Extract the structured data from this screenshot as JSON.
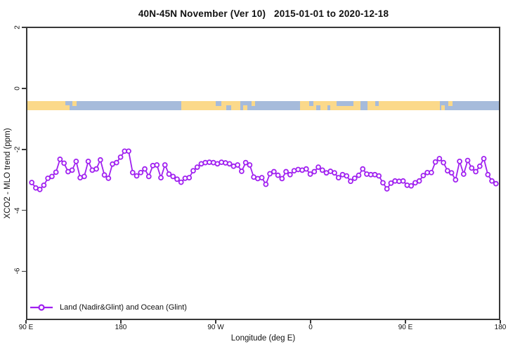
{
  "title": "40N-45N November (Ver 10)   2015-01-01 to 2020-12-18",
  "axes": {
    "x_label": "Longitude (deg E)",
    "y_label": "XCO2 - MLO trend (ppm)",
    "x_tick_labels": [
      "90 E",
      "180",
      "90 W",
      "0",
      "90 E",
      "180"
    ],
    "y_tick_labels": [
      "2",
      "0",
      "-2",
      "-4",
      "-6"
    ],
    "y_tick_values": [
      2,
      0,
      -2,
      -4,
      -6
    ]
  },
  "legend": {
    "label": "Land (Nadir&Glint) and Ocean (Glint)"
  },
  "colors": {
    "series": "#A020F0",
    "land": "#FBD98A",
    "ocean": "#A6BBDB",
    "axis": "#383838"
  },
  "map_band": {
    "description": "World coastline strip for the 40N-45N latitude band drawn near y=-0.5 ppm",
    "land_segments": [
      {
        "l": 0.0,
        "w": 8.0,
        "pos": "full"
      },
      {
        "l": 8.1,
        "w": 0.9,
        "pos": "bottom"
      },
      {
        "l": 9.6,
        "w": 0.8,
        "pos": "top"
      },
      {
        "l": 32.6,
        "w": 12.6,
        "pos": "full"
      },
      {
        "l": 45.8,
        "w": 0.8,
        "pos": "bottom"
      },
      {
        "l": 47.5,
        "w": 0.8,
        "pos": "top"
      },
      {
        "l": 57.8,
        "w": 29.7,
        "pos": "full"
      },
      {
        "l": 87.8,
        "w": 0.8,
        "pos": "bottom"
      },
      {
        "l": 89.3,
        "w": 0.8,
        "pos": "top"
      }
    ],
    "ocean_patches": [
      {
        "l": 40.0,
        "w": 1.2,
        "pos": "top"
      },
      {
        "l": 42.2,
        "w": 1.0,
        "pos": "bottom"
      },
      {
        "l": 59.8,
        "w": 0.8,
        "pos": "top"
      },
      {
        "l": 61.2,
        "w": 1.0,
        "pos": "bottom"
      },
      {
        "l": 63.6,
        "w": 0.7,
        "pos": "bottom"
      },
      {
        "l": 65.6,
        "w": 3.6,
        "pos": "top"
      },
      {
        "l": 70.6,
        "w": 1.6,
        "pos": "full"
      },
      {
        "l": 73.8,
        "w": 0.7,
        "pos": "top"
      }
    ]
  },
  "chart_data": {
    "type": "line",
    "title": "40N-45N November (Ver 10)   2015-01-01 to 2020-12-18",
    "xlabel": "Longitude (deg E)",
    "ylabel": "XCO2 - MLO trend (ppm)",
    "x_tick_labels": [
      "90 E",
      "180",
      "90 W",
      "0",
      "90 E",
      "180"
    ],
    "x_axis_note": "longitude wraps eastward from 90E around the globe to 180",
    "x_span_deg": 450,
    "x_start_deg_east": 93,
    "x_end_deg_east": 538,
    "ylim": [
      -7.6,
      2
    ],
    "grid": false,
    "legend_position": "bottom-left inside plot",
    "marker": "open-circle",
    "series": [
      {
        "name": "Land (Nadir&Glint) and Ocean (Glint)",
        "color": "#A020F0",
        "values": [
          -3.09,
          -3.27,
          -3.32,
          -3.18,
          -2.95,
          -2.89,
          -2.75,
          -2.32,
          -2.45,
          -2.73,
          -2.68,
          -2.39,
          -2.93,
          -2.89,
          -2.39,
          -2.68,
          -2.64,
          -2.34,
          -2.84,
          -2.95,
          -2.48,
          -2.43,
          -2.25,
          -2.05,
          -2.05,
          -2.76,
          -2.87,
          -2.76,
          -2.64,
          -2.89,
          -2.53,
          -2.51,
          -2.93,
          -2.51,
          -2.81,
          -2.89,
          -2.98,
          -3.08,
          -2.95,
          -2.93,
          -2.7,
          -2.58,
          -2.47,
          -2.43,
          -2.42,
          -2.43,
          -2.47,
          -2.42,
          -2.44,
          -2.47,
          -2.55,
          -2.51,
          -2.72,
          -2.43,
          -2.51,
          -2.91,
          -2.96,
          -2.93,
          -3.15,
          -2.8,
          -2.73,
          -2.85,
          -2.96,
          -2.73,
          -2.83,
          -2.7,
          -2.66,
          -2.68,
          -2.64,
          -2.81,
          -2.73,
          -2.58,
          -2.68,
          -2.77,
          -2.72,
          -2.77,
          -2.93,
          -2.83,
          -2.87,
          -3.05,
          -2.95,
          -2.85,
          -2.64,
          -2.81,
          -2.83,
          -2.83,
          -2.87,
          -3.1,
          -3.3,
          -3.11,
          -3.04,
          -3.05,
          -3.04,
          -3.18,
          -3.2,
          -3.1,
          -3.04,
          -2.86,
          -2.76,
          -2.76,
          -2.41,
          -2.3,
          -2.43,
          -2.7,
          -2.77,
          -3.0,
          -2.39,
          -2.81,
          -2.36,
          -2.61,
          -2.73,
          -2.55,
          -2.3,
          -2.83,
          -3.04,
          -3.13
        ]
      }
    ],
    "map_band_value_range": [
      -0.4,
      -0.7
    ]
  }
}
